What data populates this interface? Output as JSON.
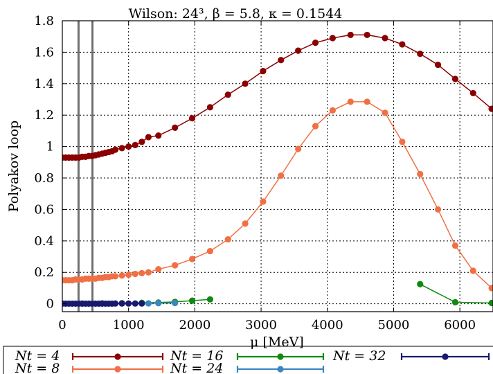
{
  "chart_data": {
    "type": "line",
    "title": "Wilson: 24³, β = 5.8, κ = 0.1544",
    "xlabel": "μ [MeV]",
    "ylabel": "Polyakov loop",
    "xlim": [
      0,
      6500
    ],
    "ylim": [
      -0.05,
      1.8
    ],
    "xticks": [
      0,
      1000,
      2000,
      3000,
      4000,
      5000,
      6000
    ],
    "yticks": [
      0,
      0.2,
      0.4,
      0.6,
      0.8,
      1,
      1.2,
      1.4,
      1.6,
      1.8
    ],
    "xtick_labels": [
      "0",
      "1000",
      "2000",
      "3000",
      "4000",
      "5000",
      "6000"
    ],
    "ytick_labels": [
      "0",
      "0.2",
      "0.4",
      "0.6",
      "0.8",
      "1",
      "1.2",
      "1.4",
      "1.6",
      "1.8"
    ],
    "grid": true,
    "vlines": [
      245,
      455
    ],
    "legend_position": "bottom",
    "series": [
      {
        "name": "N_t = 4",
        "label": "Nt = 4",
        "color": "#8b0000",
        "x": [
          0,
          50,
          100,
          150,
          200,
          250,
          300,
          350,
          400,
          450,
          500,
          550,
          600,
          650,
          700,
          750,
          800,
          900,
          1000,
          1100,
          1200,
          1300,
          1450,
          1700,
          1960,
          2230,
          2500,
          2760,
          3030,
          3300,
          3560,
          3820,
          4080,
          4350,
          4600,
          4870,
          5130,
          5400,
          5670,
          5930,
          6200,
          6480
        ],
        "y": [
          0.93,
          0.93,
          0.93,
          0.93,
          0.93,
          0.93,
          0.935,
          0.935,
          0.94,
          0.94,
          0.945,
          0.95,
          0.955,
          0.96,
          0.965,
          0.97,
          0.98,
          0.99,
          1.0,
          1.01,
          1.03,
          1.06,
          1.07,
          1.12,
          1.18,
          1.25,
          1.33,
          1.4,
          1.48,
          1.55,
          1.61,
          1.66,
          1.69,
          1.71,
          1.71,
          1.69,
          1.65,
          1.59,
          1.52,
          1.43,
          1.34,
          1.24
        ]
      },
      {
        "name": "N_t = 8",
        "label": "Nt = 8",
        "color": "#f07045",
        "x": [
          0,
          50,
          100,
          150,
          200,
          250,
          300,
          350,
          400,
          450,
          500,
          550,
          600,
          650,
          700,
          750,
          800,
          900,
          1000,
          1100,
          1200,
          1300,
          1450,
          1700,
          1960,
          2230,
          2500,
          2760,
          3030,
          3300,
          3560,
          3820,
          4080,
          4350,
          4600,
          4870,
          5130,
          5400,
          5670,
          5930,
          6200,
          6480
        ],
        "y": [
          0.15,
          0.15,
          0.15,
          0.15,
          0.155,
          0.155,
          0.155,
          0.16,
          0.16,
          0.16,
          0.16,
          0.165,
          0.165,
          0.17,
          0.17,
          0.175,
          0.175,
          0.18,
          0.185,
          0.19,
          0.195,
          0.2,
          0.22,
          0.245,
          0.285,
          0.335,
          0.41,
          0.51,
          0.65,
          0.815,
          0.985,
          1.13,
          1.23,
          1.285,
          1.285,
          1.215,
          1.03,
          0.825,
          0.6,
          0.37,
          0.21,
          0.1
        ]
      },
      {
        "name": "N_t = 16",
        "label": "Nt = 16",
        "color": "#0f8a0f",
        "segments": [
          {
            "x": [
              0,
              300,
              600,
              900,
              1200,
              1450,
              1700,
              1960,
              2230
            ],
            "y": [
              0.002,
              0.002,
              0.003,
              0.004,
              0.006,
              0.008,
              0.012,
              0.02,
              0.028
            ]
          },
          {
            "x": [
              5400,
              5930,
              6480
            ],
            "y": [
              0.125,
              0.01,
              0.005
            ]
          }
        ]
      },
      {
        "name": "N_t = 24",
        "label": "Nt = 24",
        "color": "#3a86c0",
        "segments": [
          {
            "x": [
              1300,
              1450,
              1700
            ],
            "y": [
              0.003,
              0.004,
              0.005
            ]
          }
        ]
      },
      {
        "name": "N_t = 32",
        "label": "Nt = 32",
        "color": "#191970",
        "segments": [
          {
            "x": [
              0,
              50,
              100,
              150,
              200,
              250,
              300,
              350,
              400,
              450,
              500,
              550,
              600,
              650,
              700,
              750,
              800,
              900,
              1000,
              1100,
              1200
            ],
            "y": [
              0.001,
              0.001,
              0.001,
              0.001,
              0.001,
              0.001,
              0.001,
              0.001,
              0.001,
              0.001,
              0.001,
              0.001,
              0.001,
              0.001,
              0.001,
              0.001,
              0.002,
              0.002,
              0.002,
              0.002,
              0.002
            ]
          }
        ]
      }
    ]
  }
}
